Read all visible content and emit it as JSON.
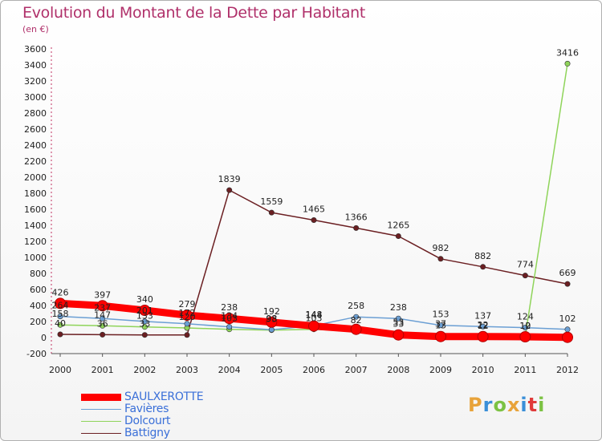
{
  "title": "Evolution du Montant de la Dette par Habitant",
  "subtitle": "(en €)",
  "brand": {
    "letters": [
      "P",
      "r",
      "o",
      "x",
      "i",
      "t",
      "i"
    ],
    "colors": [
      "#e8a33a",
      "#3a8fd8",
      "#7cc243",
      "#e8a33a",
      "#3a8fd8",
      "#e03a3a",
      "#7cc243"
    ]
  },
  "chart_data": {
    "type": "line",
    "x": [
      2000,
      2001,
      2002,
      2003,
      2004,
      2005,
      2006,
      2007,
      2008,
      2009,
      2010,
      2011,
      2012
    ],
    "ylim": [
      -200,
      3600
    ],
    "yticks": [
      -200,
      0,
      200,
      400,
      600,
      800,
      1000,
      1200,
      1400,
      1600,
      1800,
      2000,
      2200,
      2400,
      2600,
      2800,
      3000,
      3200,
      3400,
      3600
    ],
    "grid": false,
    "legend_position": "bottom-left",
    "series": [
      {
        "name": "SAULXEROTTE",
        "color": "#ff0000",
        "values": [
          426,
          397,
          340,
          279,
          238,
          192,
          144,
          103,
          33,
          13,
          12,
          10,
          3
        ],
        "labels": [
          "426",
          "397",
          "340",
          "279",
          "238",
          "192",
          "144",
          "",
          "33",
          "13",
          "12",
          "10",
          ""
        ]
      },
      {
        "name": "Favières",
        "color": "#6b9fd4",
        "values": [
          264,
          237,
          201,
          172,
          134,
          98,
          148,
          258,
          238,
          153,
          137,
          124,
          102
        ],
        "labels": [
          "264",
          "237",
          "201",
          "172",
          "134",
          "98",
          "148",
          "258",
          "238",
          "153",
          "137",
          "124",
          "102"
        ]
      },
      {
        "name": "Dolcourt",
        "color": "#8fd45a",
        "values": [
          158,
          147,
          133,
          120,
          103,
          93,
          103,
          82,
          53,
          37,
          22,
          12,
          3416
        ],
        "labels": [
          "158",
          "147",
          "133",
          "120",
          "103",
          "93",
          "103",
          "82",
          "53",
          "37",
          "22",
          "12",
          "3416"
        ]
      },
      {
        "name": "Battigny",
        "color": "#6b1f22",
        "values": [
          40,
          36,
          33,
          32,
          1839,
          1559,
          1465,
          1366,
          1265,
          982,
          882,
          774,
          669
        ],
        "labels": [
          "40",
          "36",
          "33",
          "",
          "1839",
          "1559",
          "1465",
          "1366",
          "1265",
          "982",
          "882",
          "774",
          "669"
        ]
      }
    ]
  }
}
